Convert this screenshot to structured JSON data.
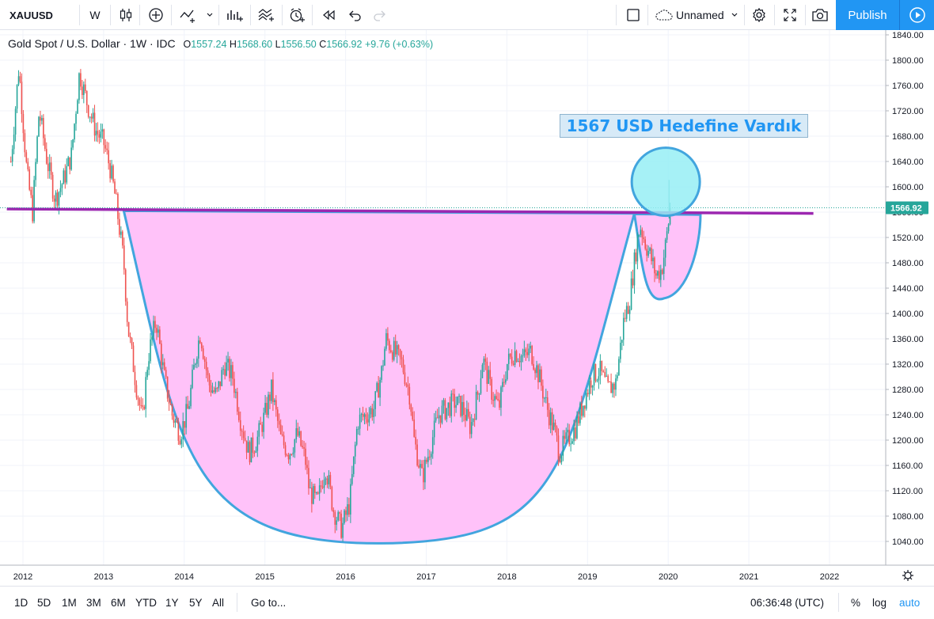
{
  "toolbar": {
    "symbol": "XAUUSD",
    "interval": "W",
    "layout_name": "Unnamed",
    "publish_label": "Publish",
    "icons": [
      "candles-icon",
      "add-indicator-icon",
      "compare-icon",
      "bar-pattern-icon",
      "templates-icon",
      "alert-icon",
      "replay-icon",
      "undo-icon",
      "redo-icon",
      "fullscreen-square-icon",
      "cloud-icon",
      "settings-icon",
      "fullscreen-icon",
      "camera-icon",
      "play-icon"
    ]
  },
  "legend": {
    "title": "Gold Spot / U.S. Dollar · 1W · IDC",
    "open_label": "O",
    "open": "1557.24",
    "high_label": "H",
    "high": "1568.60",
    "low_label": "L",
    "low": "1556.50",
    "close_label": "C",
    "close": "1566.92",
    "change": "+9.76 (+0.63%)"
  },
  "annotation": {
    "text": "1567 USD Hedefine Vardık"
  },
  "bottom": {
    "ranges": [
      "1D",
      "5D",
      "1M",
      "3M",
      "6M",
      "YTD",
      "1Y",
      "5Y",
      "All"
    ],
    "goto_label": "Go to...",
    "clock": "06:36:48 (UTC)",
    "percent_label": "%",
    "log_label": "log",
    "auto_label": "auto"
  },
  "colors": {
    "up": "#26a69a",
    "down": "#ef5350",
    "cup_fill": "#ffc2f9",
    "cup_stroke": "#42a5de",
    "neckline": "#9c27b0",
    "circle_fill": "#96eef5",
    "accent": "#2196f3"
  },
  "chart_data": {
    "type": "candlestick",
    "instrument": "XAUUSD",
    "timeframe": "1W",
    "x_range": [
      2011.8,
      2022.6
    ],
    "ylim": [
      1012,
      1852
    ],
    "y_ticks": [
      1040,
      1080,
      1120,
      1160,
      1200,
      1240,
      1280,
      1320,
      1360,
      1400,
      1440,
      1480,
      1520,
      1560,
      1600,
      1640,
      1680,
      1720,
      1760,
      1800,
      1840
    ],
    "x_ticks": [
      "2012",
      "2013",
      "2014",
      "2015",
      "2016",
      "2017",
      "2018",
      "2019",
      "2020",
      "2021",
      "2022"
    ],
    "last_price": 1566.92,
    "last_price_label": "1566.92",
    "price_path": [
      [
        2011.85,
        1640
      ],
      [
        2011.95,
        1790
      ],
      [
        2012.05,
        1620
      ],
      [
        2012.12,
        1560
      ],
      [
        2012.2,
        1720
      ],
      [
        2012.3,
        1640
      ],
      [
        2012.4,
        1580
      ],
      [
        2012.5,
        1610
      ],
      [
        2012.6,
        1650
      ],
      [
        2012.7,
        1780
      ],
      [
        2012.8,
        1730
      ],
      [
        2012.9,
        1690
      ],
      [
        2013.0,
        1670
      ],
      [
        2013.08,
        1630
      ],
      [
        2013.15,
        1580
      ],
      [
        2013.25,
        1480
      ],
      [
        2013.3,
        1380
      ],
      [
        2013.4,
        1290
      ],
      [
        2013.48,
        1230
      ],
      [
        2013.55,
        1330
      ],
      [
        2013.65,
        1390
      ],
      [
        2013.75,
        1300
      ],
      [
        2013.85,
        1240
      ],
      [
        2013.95,
        1210
      ],
      [
        2014.05,
        1250
      ],
      [
        2014.15,
        1340
      ],
      [
        2014.2,
        1370
      ],
      [
        2014.3,
        1290
      ],
      [
        2014.4,
        1270
      ],
      [
        2014.5,
        1320
      ],
      [
        2014.6,
        1300
      ],
      [
        2014.7,
        1230
      ],
      [
        2014.8,
        1180
      ],
      [
        2014.9,
        1200
      ],
      [
        2015.0,
        1240
      ],
      [
        2015.08,
        1280
      ],
      [
        2015.2,
        1200
      ],
      [
        2015.3,
        1180
      ],
      [
        2015.4,
        1210
      ],
      [
        2015.5,
        1170
      ],
      [
        2015.55,
        1120
      ],
      [
        2015.65,
        1100
      ],
      [
        2015.75,
        1160
      ],
      [
        2015.85,
        1090
      ],
      [
        2015.95,
        1060
      ],
      [
        2016.05,
        1100
      ],
      [
        2016.15,
        1230
      ],
      [
        2016.25,
        1240
      ],
      [
        2016.35,
        1250
      ],
      [
        2016.45,
        1310
      ],
      [
        2016.5,
        1360
      ],
      [
        2016.6,
        1340
      ],
      [
        2016.7,
        1320
      ],
      [
        2016.8,
        1270
      ],
      [
        2016.85,
        1200
      ],
      [
        2016.95,
        1140
      ],
      [
        2017.05,
        1190
      ],
      [
        2017.15,
        1240
      ],
      [
        2017.25,
        1250
      ],
      [
        2017.35,
        1260
      ],
      [
        2017.45,
        1250
      ],
      [
        2017.55,
        1220
      ],
      [
        2017.65,
        1280
      ],
      [
        2017.7,
        1330
      ],
      [
        2017.8,
        1280
      ],
      [
        2017.9,
        1250
      ],
      [
        2018.0,
        1320
      ],
      [
        2018.1,
        1340
      ],
      [
        2018.2,
        1330
      ],
      [
        2018.3,
        1340
      ],
      [
        2018.4,
        1300
      ],
      [
        2018.5,
        1250
      ],
      [
        2018.6,
        1210
      ],
      [
        2018.65,
        1180
      ],
      [
        2018.75,
        1200
      ],
      [
        2018.85,
        1220
      ],
      [
        2018.95,
        1260
      ],
      [
        2019.05,
        1300
      ],
      [
        2019.15,
        1310
      ],
      [
        2019.25,
        1280
      ],
      [
        2019.35,
        1290
      ],
      [
        2019.45,
        1390
      ],
      [
        2019.52,
        1420
      ],
      [
        2019.6,
        1500
      ],
      [
        2019.65,
        1540
      ],
      [
        2019.72,
        1510
      ],
      [
        2019.78,
        1490
      ],
      [
        2019.85,
        1460
      ],
      [
        2019.92,
        1470
      ],
      [
        2019.97,
        1510
      ],
      [
        2020.01,
        1550
      ],
      [
        2020.03,
        1566.92
      ]
    ],
    "drawings": {
      "neckline_price": [
        1565,
        1558
      ],
      "neckline_x": [
        2011.8,
        2021.8
      ],
      "cup_bottom": [
        2016.45,
        1037
      ],
      "handle_low": [
        2019.95,
        1424
      ],
      "target_circle_center": [
        2019.97,
        1608
      ]
    }
  }
}
